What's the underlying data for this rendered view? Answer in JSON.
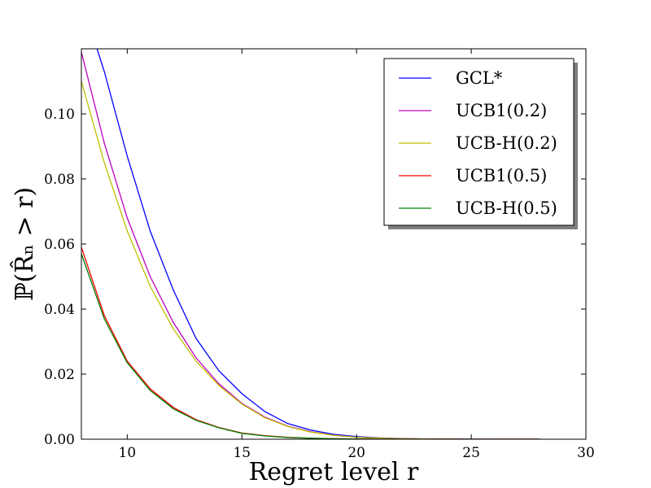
{
  "chart_data": {
    "type": "line",
    "xlabel": "Regret level r",
    "ylabel": "ℙ(R̂ₙ > r)",
    "xlim": [
      8,
      30
    ],
    "ylim": [
      0,
      0.12
    ],
    "x_ticks": [
      10,
      15,
      20,
      25,
      30
    ],
    "y_ticks": [
      0.0,
      0.02,
      0.04,
      0.06,
      0.08,
      0.1
    ],
    "x_tick_labels": [
      "10",
      "15",
      "20",
      "25",
      "30"
    ],
    "y_tick_labels": [
      "0.00",
      "0.02",
      "0.04",
      "0.06",
      "0.08",
      "0.10"
    ],
    "grid": false,
    "legend_position": "upper right",
    "x": [
      8,
      9,
      10,
      11,
      12,
      13,
      14,
      15,
      16,
      17,
      18,
      19,
      20,
      21,
      22,
      23,
      24,
      25,
      26,
      27,
      28
    ],
    "series": [
      {
        "name": "GCL*",
        "color": "#0000ff",
        "values": [
          0.135,
          0.113,
          0.087,
          0.064,
          0.046,
          0.031,
          0.021,
          0.014,
          0.0085,
          0.0048,
          0.0028,
          0.0015,
          0.0008,
          0.0004,
          0.0002,
          0.0001,
          5e-05,
          2e-05,
          0.0,
          0.0,
          0.0
        ]
      },
      {
        "name": "UCB1(0.2)",
        "color": "#bf00bf",
        "values": [
          0.119,
          0.091,
          0.068,
          0.05,
          0.036,
          0.025,
          0.017,
          0.011,
          0.0068,
          0.004,
          0.0023,
          0.0012,
          0.0006,
          0.0003,
          0.00015,
          7e-05,
          3e-05,
          0.0,
          0.0,
          0.0,
          0.0
        ]
      },
      {
        "name": "UCB-H(0.2)",
        "color": "#bfbf00",
        "values": [
          0.11,
          0.085,
          0.064,
          0.047,
          0.034,
          0.024,
          0.0165,
          0.0108,
          0.0066,
          0.0039,
          0.0022,
          0.0012,
          0.0006,
          0.0003,
          0.00015,
          7e-05,
          3e-05,
          0.0,
          0.0,
          0.0,
          0.0
        ]
      },
      {
        "name": "UCB1(0.5)",
        "color": "#ff0000",
        "values": [
          0.059,
          0.038,
          0.024,
          0.0155,
          0.0098,
          0.006,
          0.0036,
          0.0019,
          0.0011,
          0.0006,
          0.0003,
          0.00015,
          7e-05,
          3e-05,
          0.0,
          0.0,
          0.0,
          0.0,
          0.0,
          0.0,
          0.0
        ]
      },
      {
        "name": "UCB-H(0.5)",
        "color": "#008000",
        "values": [
          0.057,
          0.037,
          0.0235,
          0.015,
          0.0094,
          0.0058,
          0.0035,
          0.0018,
          0.001,
          0.0005,
          0.0003,
          0.00015,
          7e-05,
          3e-05,
          0.0,
          0.0,
          0.0,
          0.0,
          0.0,
          0.0,
          0.0
        ]
      }
    ]
  }
}
